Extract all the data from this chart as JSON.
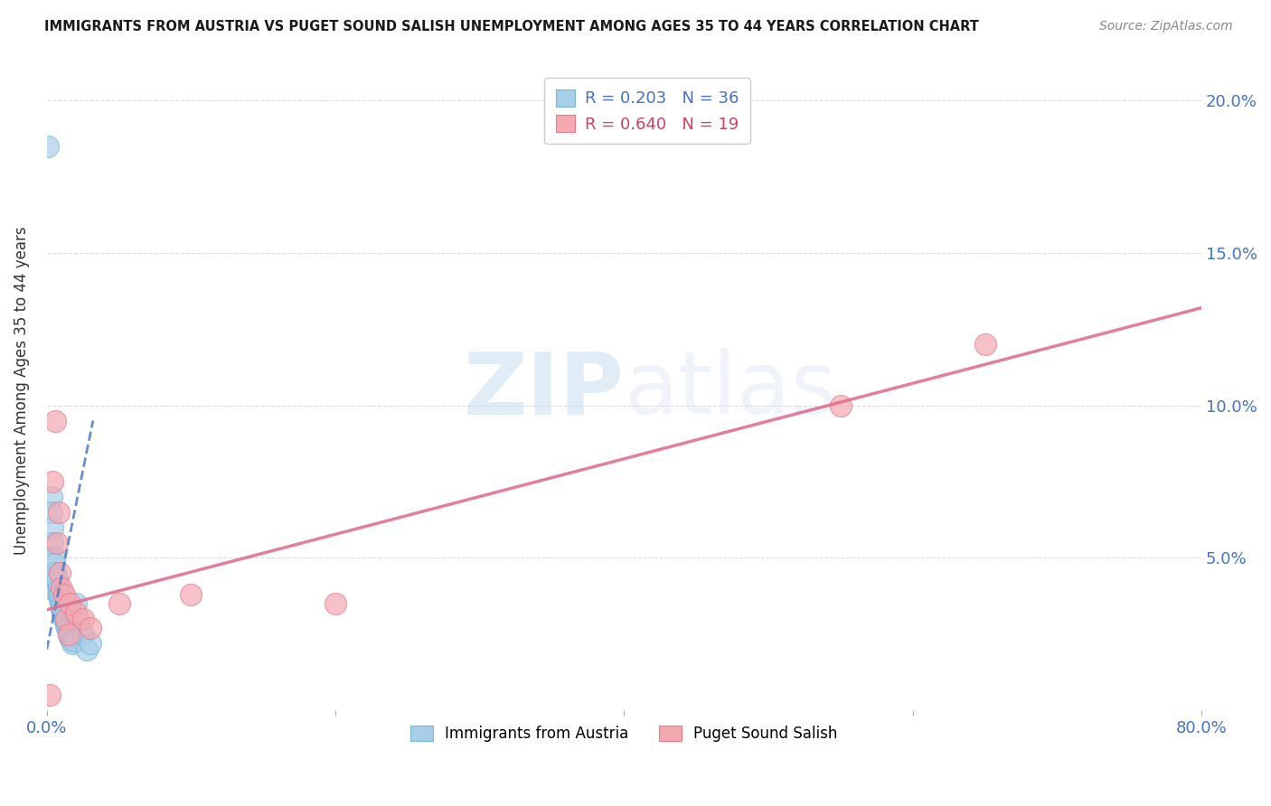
{
  "title": "IMMIGRANTS FROM AUSTRIA VS PUGET SOUND SALISH UNEMPLOYMENT AMONG AGES 35 TO 44 YEARS CORRELATION CHART",
  "source": "Source: ZipAtlas.com",
  "ylabel": "Unemployment Among Ages 35 to 44 years",
  "legend_blue_text": "R = 0.203   N = 36",
  "legend_pink_text": "R = 0.640   N = 19",
  "legend_label_blue": "Immigrants from Austria",
  "legend_label_pink": "Puget Sound Salish",
  "watermark_zip": "ZIP",
  "watermark_atlas": "atlas",
  "blue_color": "#a8cfe8",
  "blue_color_edge": "#7ab3d4",
  "pink_color": "#f4a8b0",
  "pink_color_edge": "#e87890",
  "blue_line_color": "#4472c4",
  "pink_line_color": "#e07090",
  "xmax": 0.8,
  "ymax": 0.21,
  "yticks": [
    0.0,
    0.05,
    0.1,
    0.15,
    0.2
  ],
  "ytick_labels": [
    "",
    "5.0%",
    "10.0%",
    "15.0%",
    "20.0%"
  ],
  "xticks": [
    0.0,
    0.2,
    0.4,
    0.6,
    0.8
  ],
  "xtick_labels": [
    "0.0%",
    "",
    "",
    "",
    "80.0%"
  ],
  "blue_x": [
    0.002,
    0.003,
    0.003,
    0.004,
    0.004,
    0.005,
    0.005,
    0.006,
    0.006,
    0.007,
    0.007,
    0.008,
    0.008,
    0.009,
    0.009,
    0.01,
    0.01,
    0.011,
    0.011,
    0.012,
    0.012,
    0.013,
    0.013,
    0.014,
    0.015,
    0.015,
    0.016,
    0.017,
    0.018,
    0.019,
    0.02,
    0.022,
    0.025,
    0.028,
    0.03,
    0.001
  ],
  "blue_y": [
    0.04,
    0.07,
    0.065,
    0.06,
    0.055,
    0.05,
    0.048,
    0.045,
    0.044,
    0.042,
    0.043,
    0.04,
    0.038,
    0.036,
    0.038,
    0.035,
    0.033,
    0.032,
    0.034,
    0.03,
    0.031,
    0.029,
    0.028,
    0.027,
    0.025,
    0.026,
    0.024,
    0.023,
    0.022,
    0.023,
    0.035,
    0.03,
    0.025,
    0.02,
    0.022,
    0.185
  ],
  "blue_line_x0": 0.0,
  "blue_line_y0": 0.02,
  "blue_line_x1": 0.032,
  "blue_line_y1": 0.095,
  "pink_x": [
    0.002,
    0.004,
    0.006,
    0.007,
    0.008,
    0.009,
    0.01,
    0.012,
    0.013,
    0.015,
    0.016,
    0.02,
    0.025,
    0.03,
    0.05,
    0.1,
    0.2,
    0.55,
    0.65
  ],
  "pink_y": [
    0.005,
    0.075,
    0.095,
    0.055,
    0.065,
    0.045,
    0.04,
    0.038,
    0.03,
    0.025,
    0.035,
    0.032,
    0.03,
    0.027,
    0.035,
    0.038,
    0.035,
    0.1,
    0.12
  ],
  "pink_line_x0": 0.0,
  "pink_line_y0": 0.033,
  "pink_line_x1": 0.8,
  "pink_line_y1": 0.132,
  "background_color": "#ffffff",
  "grid_color": "#cccccc",
  "title_color": "#1a1a1a",
  "source_color": "#888888",
  "axis_label_color": "#333333",
  "tick_color": "#4472c4"
}
